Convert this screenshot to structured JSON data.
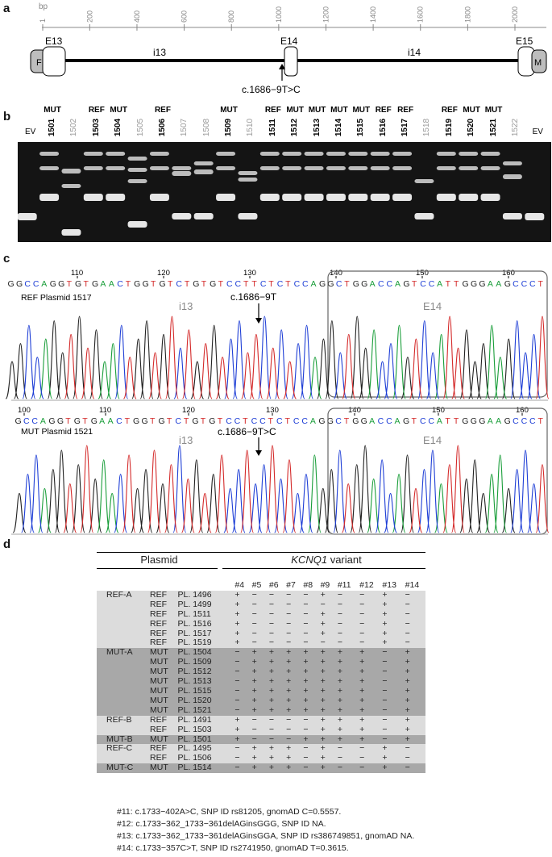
{
  "panels": {
    "a": "a",
    "b": "b",
    "c": "c",
    "d": "d"
  },
  "panel_a": {
    "unit": "bp",
    "ticks": [
      "1",
      "200",
      "400",
      "600",
      "800",
      "1000",
      "1200",
      "1400",
      "1600",
      "1800",
      "2000"
    ],
    "tick_values": [
      1,
      200,
      400,
      600,
      800,
      1000,
      1200,
      1400,
      1600,
      1800,
      2000
    ],
    "exons": [
      "E13",
      "E14",
      "E15"
    ],
    "introns": [
      "i13",
      "i14"
    ],
    "tags": [
      "F",
      "M"
    ],
    "variant": "c.1686−9T>C"
  },
  "panel_b": {
    "lanes": [
      {
        "status": "",
        "num": "EV",
        "strong": false
      },
      {
        "status": "MUT",
        "num": "1501",
        "strong": true
      },
      {
        "status": "",
        "num": "1502",
        "strong": false
      },
      {
        "status": "REF",
        "num": "1503",
        "strong": true
      },
      {
        "status": "MUT",
        "num": "1504",
        "strong": true
      },
      {
        "status": "",
        "num": "1505",
        "strong": false
      },
      {
        "status": "REF",
        "num": "1506",
        "strong": true
      },
      {
        "status": "",
        "num": "1507",
        "strong": false
      },
      {
        "status": "",
        "num": "1508",
        "strong": false
      },
      {
        "status": "MUT",
        "num": "1509",
        "strong": true
      },
      {
        "status": "",
        "num": "1510",
        "strong": false
      },
      {
        "status": "REF",
        "num": "1511",
        "strong": true
      },
      {
        "status": "MUT",
        "num": "1512",
        "strong": true
      },
      {
        "status": "MUT",
        "num": "1513",
        "strong": true
      },
      {
        "status": "MUT",
        "num": "1514",
        "strong": true
      },
      {
        "status": "MUT",
        "num": "1515",
        "strong": true
      },
      {
        "status": "REF",
        "num": "1516",
        "strong": true
      },
      {
        "status": "REF",
        "num": "1517",
        "strong": true
      },
      {
        "status": "",
        "num": "1518",
        "strong": false
      },
      {
        "status": "REF",
        "num": "1519",
        "strong": true
      },
      {
        "status": "MUT",
        "num": "1520",
        "strong": true
      },
      {
        "status": "MUT",
        "num": "1521",
        "strong": true
      },
      {
        "status": "",
        "num": "1522",
        "strong": false
      },
      {
        "status": "",
        "num": "EV",
        "strong": false
      }
    ]
  },
  "panel_c": {
    "ref": {
      "sequence": "GGCCAGGTGTGAACTGGTGTCTGTGTCCTTCTCTCCAGGCTGGACCAGTCCATTGGGAAGCCCT",
      "positions": [
        "110",
        "120",
        "130",
        "140",
        "150",
        "160"
      ],
      "label": "REF Plasmid 1517",
      "intron": "i13",
      "exon": "E14",
      "variant": "c.1686−9T"
    },
    "mut": {
      "sequence": "GCCAGGTGTGAACTGGTGTCTGTGTCCTCCTCTCCAGGCTGGACCAGTCCATTGGGAAGCCCT",
      "positions": [
        "100",
        "110",
        "120",
        "130",
        "140",
        "150",
        "160"
      ],
      "label": "MUT Plasmid 1521",
      "intron": "i13",
      "exon": "E14",
      "variant": "c.1686−9T>C"
    }
  },
  "panel_d": {
    "header_plasmid": "Plasmid",
    "header_variant_gene": "KCNQ1",
    "header_variant_word": " variant",
    "columns": [
      "#4",
      "#5",
      "#6",
      "#7",
      "#8",
      "#9",
      "#11",
      "#12",
      "#13",
      "#14"
    ],
    "groups": [
      {
        "name": "REF-A",
        "shade": "light",
        "rows": [
          {
            "type": "REF",
            "pl": "PL. 1496",
            "v": [
              "+",
              "−",
              "−",
              "−",
              "−",
              "+",
              "−",
              "−",
              "+",
              "−"
            ]
          },
          {
            "type": "REF",
            "pl": "PL. 1499",
            "v": [
              "+",
              "−",
              "−",
              "−",
              "−",
              "−",
              "−",
              "−",
              "+",
              "−"
            ]
          },
          {
            "type": "REF",
            "pl": "PL. 1511",
            "v": [
              "+",
              "−",
              "−",
              "−",
              "−",
              "+",
              "−",
              "−",
              "+",
              "−"
            ]
          },
          {
            "type": "REF",
            "pl": "PL. 1516",
            "v": [
              "+",
              "−",
              "−",
              "−",
              "−",
              "+",
              "−",
              "−",
              "+",
              "−"
            ]
          },
          {
            "type": "REF",
            "pl": "PL. 1517",
            "v": [
              "+",
              "−",
              "−",
              "−",
              "−",
              "+",
              "−",
              "−",
              "+",
              "−"
            ]
          },
          {
            "type": "REF",
            "pl": "PL. 1519",
            "v": [
              "+",
              "−",
              "−",
              "−",
              "−",
              "−",
              "−",
              "−",
              "+",
              "−"
            ]
          }
        ]
      },
      {
        "name": "MUT-A",
        "shade": "dark",
        "rows": [
          {
            "type": "MUT",
            "pl": "PL. 1504",
            "v": [
              "−",
              "+",
              "+",
              "+",
              "+",
              "+",
              "+",
              "+",
              "−",
              "+"
            ]
          },
          {
            "type": "MUT",
            "pl": "PL. 1509",
            "v": [
              "−",
              "+",
              "+",
              "+",
              "+",
              "+",
              "+",
              "+",
              "−",
              "+"
            ]
          },
          {
            "type": "MUT",
            "pl": "PL. 1512",
            "v": [
              "−",
              "+",
              "+",
              "+",
              "+",
              "+",
              "+",
              "+",
              "−",
              "+"
            ]
          },
          {
            "type": "MUT",
            "pl": "PL. 1513",
            "v": [
              "−",
              "+",
              "+",
              "+",
              "+",
              "+",
              "+",
              "+",
              "−",
              "+"
            ]
          },
          {
            "type": "MUT",
            "pl": "PL. 1515",
            "v": [
              "−",
              "+",
              "+",
              "+",
              "+",
              "+",
              "+",
              "+",
              "−",
              "+"
            ]
          },
          {
            "type": "MUT",
            "pl": "PL. 1520",
            "v": [
              "−",
              "+",
              "+",
              "+",
              "+",
              "+",
              "+",
              "+",
              "−",
              "+"
            ]
          },
          {
            "type": "MUT",
            "pl": "PL. 1521",
            "v": [
              "−",
              "+",
              "+",
              "+",
              "+",
              "+",
              "+",
              "+",
              "−",
              "+"
            ]
          }
        ]
      },
      {
        "name": "REF-B",
        "shade": "light",
        "rows": [
          {
            "type": "REF",
            "pl": "PL. 1491",
            "v": [
              "+",
              "−",
              "−",
              "−",
              "−",
              "+",
              "+",
              "+",
              "−",
              "+"
            ]
          },
          {
            "type": "REF",
            "pl": "PL. 1503",
            "v": [
              "+",
              "−",
              "−",
              "−",
              "−",
              "+",
              "+",
              "+",
              "−",
              "+"
            ]
          }
        ]
      },
      {
        "name": "MUT-B",
        "shade": "dark",
        "rows": [
          {
            "type": "MUT",
            "pl": "PL. 1501",
            "v": [
              "+",
              "−",
              "−",
              "−",
              "+",
              "+",
              "+",
              "+",
              "−",
              "+"
            ]
          }
        ]
      },
      {
        "name": "REF-C",
        "shade": "light",
        "rows": [
          {
            "type": "REF",
            "pl": "PL. 1495",
            "v": [
              "−",
              "+",
              "+",
              "+",
              "−",
              "+",
              "−",
              "−",
              "+",
              "−"
            ]
          },
          {
            "type": "REF",
            "pl": "PL. 1506",
            "v": [
              "−",
              "+",
              "+",
              "+",
              "−",
              "+",
              "−",
              "−",
              "+",
              "−"
            ]
          }
        ]
      },
      {
        "name": "MUT-C",
        "shade": "dark",
        "rows": [
          {
            "type": "MUT",
            "pl": "PL. 1514",
            "v": [
              "−",
              "+",
              "+",
              "+",
              "−",
              "+",
              "−",
              "−",
              "+",
              "−"
            ]
          }
        ]
      }
    ],
    "footnotes": [
      "#11: c.1733−402A>C, SNP ID rs81205, gnomAD C=0.5557.",
      "#12: c.1733−362_1733−361delAGinsGGG, SNP ID NA.",
      "#13: c.1733−362_1733−361delAGinsGGA, SNP ID rs386749851, gnomAD NA.",
      "#14: c.1733−357C>T, SNP ID rs2741950, gnomAD T=0.3615."
    ]
  }
}
